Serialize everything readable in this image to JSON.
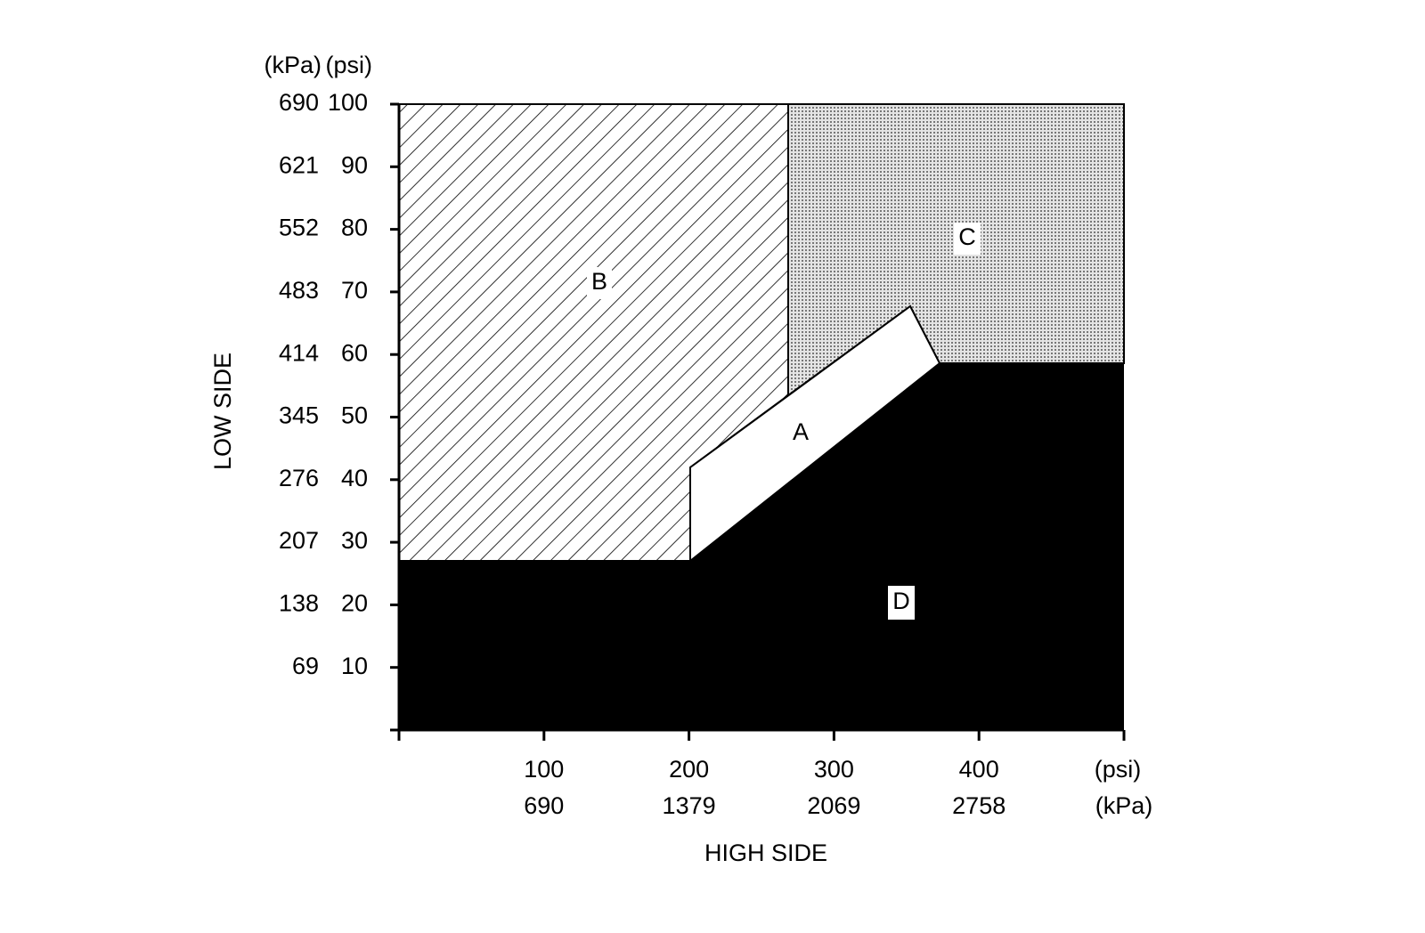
{
  "y_axis": {
    "title": "LOW SIDE",
    "unit_labels": [
      "(kPa)",
      "(psi)"
    ],
    "ticks": [
      {
        "kpa": 690,
        "psi": 100
      },
      {
        "kpa": 621,
        "psi": 90
      },
      {
        "kpa": 552,
        "psi": 80
      },
      {
        "kpa": 483,
        "psi": 70
      },
      {
        "kpa": 414,
        "psi": 60
      },
      {
        "kpa": 345,
        "psi": 50
      },
      {
        "kpa": 276,
        "psi": 40
      },
      {
        "kpa": 207,
        "psi": 30
      },
      {
        "kpa": 138,
        "psi": 20
      },
      {
        "kpa": 69,
        "psi": 10
      }
    ]
  },
  "x_axis": {
    "title": "HIGH SIDE",
    "unit_labels": [
      "(psi)",
      "(kPa)"
    ],
    "ticks": [
      {
        "psi": 100,
        "kpa": 690
      },
      {
        "psi": 200,
        "kpa": 1379
      },
      {
        "psi": 300,
        "kpa": 2069
      },
      {
        "psi": 400,
        "kpa": 2758
      }
    ]
  },
  "regions": [
    "A",
    "B",
    "C",
    "D"
  ]
}
